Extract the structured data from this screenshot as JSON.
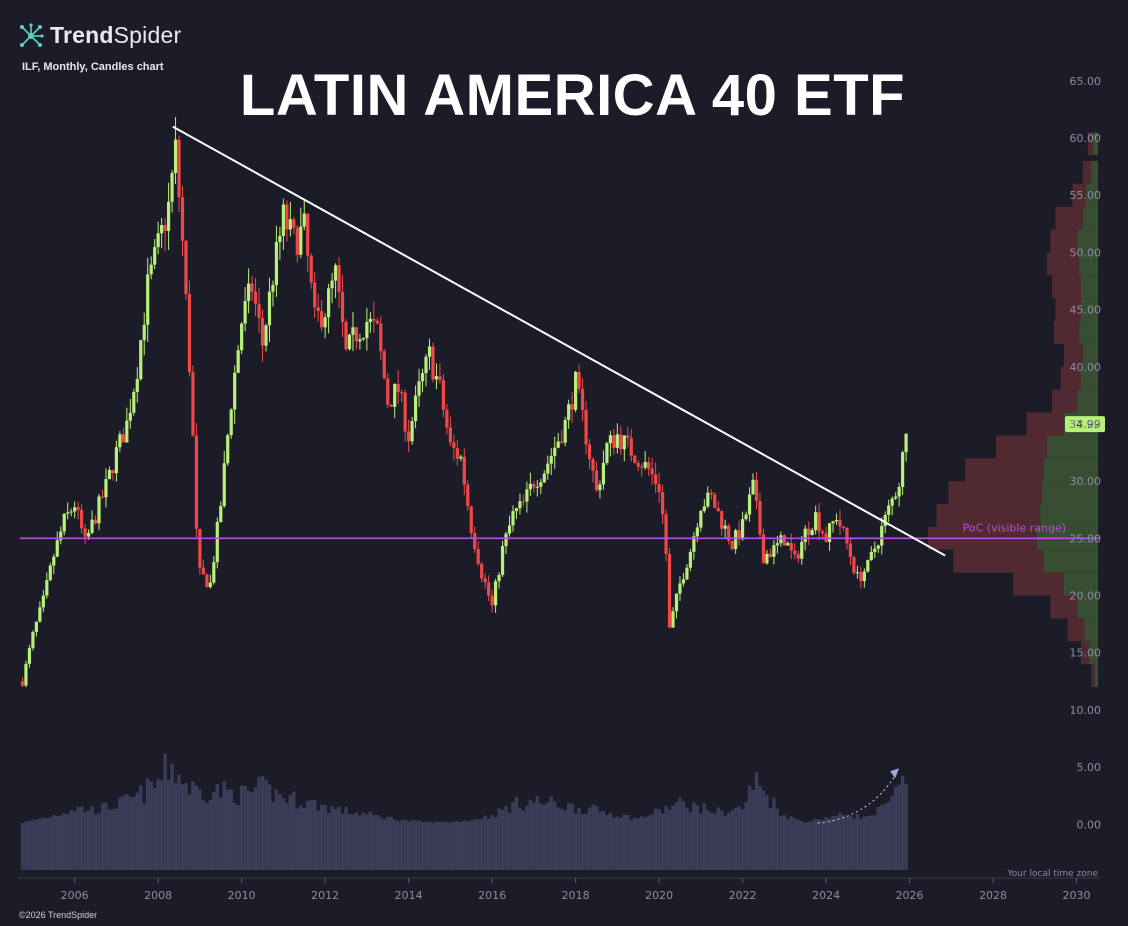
{
  "brand": {
    "name_bold": "Trend",
    "name_light": "Spider",
    "copyright": "©2026 TrendSpider"
  },
  "header": {
    "subtitle": "ILF, Monthly, Candles chart",
    "title": "LATIN AMERICA 40 ETF"
  },
  "colors": {
    "background": "#1c1c28",
    "up": "#b8f07a",
    "down": "#f04848",
    "poc": "#b84fd6",
    "trendline": "#ffffff",
    "volume": "#3b3d58",
    "price_label_bg": "#b8f07a",
    "vp_up": "#3c5433",
    "vp_down": "#5a2b33"
  },
  "chart_data": {
    "type": "candlestick",
    "symbol": "ILF",
    "timeframe": "Monthly",
    "title": "LATIN AMERICA 40 ETF",
    "y_ticks": [
      "65.00",
      "60.00",
      "55.00",
      "50.00",
      "45.00",
      "40.00",
      "35.00",
      "30.00",
      "25.00",
      "20.00",
      "15.00",
      "10.00",
      "5.00",
      "0.00"
    ],
    "ylim": [
      -4,
      67
    ],
    "x_ticks": [
      "2006",
      "2008",
      "2010",
      "2012",
      "2014",
      "2016",
      "2018",
      "2020",
      "2022",
      "2024",
      "2026",
      "2028",
      "2030"
    ],
    "xlim": [
      2004.65,
      2031.0
    ],
    "last_price": "34.99",
    "poc": {
      "value": 25.0,
      "label": "PoC (visible range)"
    },
    "trendline": {
      "from": [
        2008.35,
        61.0
      ],
      "to": [
        2026.85,
        23.5
      ]
    },
    "volume_arrow": {
      "from": [
        2023.8,
        0.1
      ],
      "to": [
        2025.75,
        4.9
      ]
    },
    "timezone_label": "Your local time zone",
    "anchors": [
      [
        2004.75,
        12.5
      ],
      [
        2005.0,
        16.5
      ],
      [
        2005.25,
        19.5
      ],
      [
        2005.5,
        23.5
      ],
      [
        2005.75,
        26.5
      ],
      [
        2006.0,
        28.0
      ],
      [
        2006.25,
        24.5
      ],
      [
        2006.5,
        27.0
      ],
      [
        2006.75,
        29.5
      ],
      [
        2007.0,
        32.5
      ],
      [
        2007.25,
        35.0
      ],
      [
        2007.5,
        40.0
      ],
      [
        2007.75,
        47.0
      ],
      [
        2008.0,
        50.5
      ],
      [
        2008.25,
        54.0
      ],
      [
        2008.42,
        59.0
      ],
      [
        2008.6,
        50.0
      ],
      [
        2008.8,
        37.0
      ],
      [
        2008.95,
        22.0
      ],
      [
        2009.25,
        21.0
      ],
      [
        2009.5,
        28.0
      ],
      [
        2009.75,
        37.0
      ],
      [
        2010.0,
        44.0
      ],
      [
        2010.25,
        47.0
      ],
      [
        2010.5,
        42.0
      ],
      [
        2010.75,
        48.0
      ],
      [
        2011.0,
        53.0
      ],
      [
        2011.25,
        51.0
      ],
      [
        2011.5,
        52.0
      ],
      [
        2011.75,
        44.0
      ],
      [
        2012.0,
        45.0
      ],
      [
        2012.25,
        48.0
      ],
      [
        2012.5,
        41.0
      ],
      [
        2012.75,
        43.0
      ],
      [
        2013.0,
        44.0
      ],
      [
        2013.25,
        43.0
      ],
      [
        2013.5,
        37.0
      ],
      [
        2013.75,
        38.0
      ],
      [
        2014.0,
        34.0
      ],
      [
        2014.25,
        38.0
      ],
      [
        2014.5,
        41.0
      ],
      [
        2014.75,
        38.0
      ],
      [
        2015.0,
        33.0
      ],
      [
        2015.25,
        32.0
      ],
      [
        2015.5,
        26.0
      ],
      [
        2015.75,
        22.0
      ],
      [
        2016.0,
        19.0
      ],
      [
        2016.25,
        24.0
      ],
      [
        2016.5,
        27.0
      ],
      [
        2016.75,
        28.0
      ],
      [
        2017.0,
        30.0
      ],
      [
        2017.25,
        31.0
      ],
      [
        2017.5,
        33.0
      ],
      [
        2017.75,
        35.0
      ],
      [
        2018.0,
        38.5
      ],
      [
        2018.25,
        34.0
      ],
      [
        2018.5,
        29.0
      ],
      [
        2018.75,
        33.0
      ],
      [
        2019.0,
        34.0
      ],
      [
        2019.25,
        33.0
      ],
      [
        2019.5,
        32.0
      ],
      [
        2019.75,
        31.0
      ],
      [
        2020.0,
        29.5
      ],
      [
        2020.15,
        25.0
      ],
      [
        2020.25,
        17.0
      ],
      [
        2020.5,
        21.0
      ],
      [
        2020.75,
        24.0
      ],
      [
        2021.0,
        28.0
      ],
      [
        2021.25,
        28.5
      ],
      [
        2021.5,
        26.5
      ],
      [
        2021.75,
        24.5
      ],
      [
        2022.0,
        26.0
      ],
      [
        2022.25,
        29.5
      ],
      [
        2022.5,
        23.5
      ],
      [
        2022.75,
        24.0
      ],
      [
        2023.0,
        25.0
      ],
      [
        2023.25,
        23.0
      ],
      [
        2023.5,
        25.5
      ],
      [
        2023.75,
        27.0
      ],
      [
        2024.0,
        25.0
      ],
      [
        2024.25,
        27.0
      ],
      [
        2024.5,
        24.5
      ],
      [
        2024.75,
        21.5
      ],
      [
        2025.0,
        22.5
      ],
      [
        2025.25,
        25.0
      ],
      [
        2025.5,
        27.5
      ],
      [
        2025.75,
        30.0
      ],
      [
        2025.95,
        34.99
      ]
    ],
    "volume_anchors": [
      [
        2004.7,
        0.1
      ],
      [
        2005.5,
        0.8
      ],
      [
        2006.0,
        1.5
      ],
      [
        2006.5,
        1.3
      ],
      [
        2007.0,
        1.8
      ],
      [
        2007.5,
        2.5
      ],
      [
        2008.0,
        3.8
      ],
      [
        2008.3,
        5.5
      ],
      [
        2008.7,
        3.5
      ],
      [
        2009.0,
        3.0
      ],
      [
        2009.5,
        3.1
      ],
      [
        2010.0,
        2.7
      ],
      [
        2010.5,
        3.3
      ],
      [
        2011.0,
        2.5
      ],
      [
        2011.5,
        2.1
      ],
      [
        2012.0,
        1.6
      ],
      [
        2012.5,
        1.2
      ],
      [
        2013.0,
        0.9
      ],
      [
        2013.5,
        0.6
      ],
      [
        2014.0,
        0.3
      ],
      [
        2014.5,
        0.2
      ],
      [
        2015.0,
        0.2
      ],
      [
        2015.5,
        0.4
      ],
      [
        2016.0,
        0.8
      ],
      [
        2016.5,
        1.8
      ],
      [
        2017.0,
        2.1
      ],
      [
        2017.5,
        1.9
      ],
      [
        2018.0,
        1.5
      ],
      [
        2018.5,
        1.3
      ],
      [
        2019.0,
        0.9
      ],
      [
        2019.5,
        0.5
      ],
      [
        2020.0,
        1.2
      ],
      [
        2020.5,
        1.9
      ],
      [
        2021.0,
        1.5
      ],
      [
        2021.5,
        1.1
      ],
      [
        2022.0,
        1.5
      ],
      [
        2022.3,
        4.0
      ],
      [
        2022.6,
        2.6
      ],
      [
        2023.0,
        0.8
      ],
      [
        2023.5,
        0.2
      ],
      [
        2024.0,
        0.6
      ],
      [
        2024.5,
        0.9
      ],
      [
        2025.0,
        0.6
      ],
      [
        2025.5,
        1.8
      ],
      [
        2025.9,
        4.0
      ]
    ],
    "volume_profile_levels": [
      [
        59.5,
        0.03,
        0.06
      ],
      [
        57,
        0.04,
        0.09
      ],
      [
        55,
        0.07,
        0.15
      ],
      [
        53,
        0.09,
        0.25
      ],
      [
        51,
        0.12,
        0.28
      ],
      [
        49,
        0.11,
        0.3
      ],
      [
        47,
        0.1,
        0.27
      ],
      [
        45,
        0.1,
        0.25
      ],
      [
        43,
        0.11,
        0.26
      ],
      [
        41,
        0.09,
        0.2
      ],
      [
        39,
        0.1,
        0.22
      ],
      [
        37,
        0.12,
        0.27
      ],
      [
        35,
        0.2,
        0.42
      ],
      [
        33,
        0.3,
        0.6
      ],
      [
        31,
        0.32,
        0.78
      ],
      [
        29,
        0.33,
        0.88
      ],
      [
        27,
        0.34,
        0.95
      ],
      [
        25,
        0.36,
        1.0
      ],
      [
        23,
        0.32,
        0.85
      ],
      [
        21,
        0.2,
        0.5
      ],
      [
        19,
        0.12,
        0.28
      ],
      [
        17,
        0.08,
        0.18
      ],
      [
        15,
        0.05,
        0.1
      ],
      [
        13,
        0.02,
        0.04
      ]
    ]
  }
}
